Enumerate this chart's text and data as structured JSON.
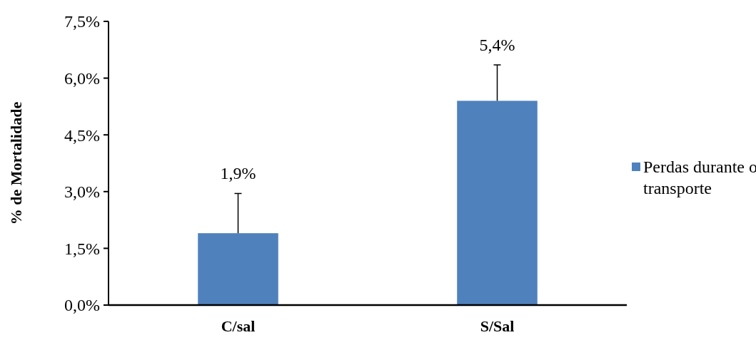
{
  "chart_data": {
    "type": "bar",
    "ylabel": "% de Mortalidade",
    "categories": [
      "C/sal",
      "S/Sal"
    ],
    "series": [
      {
        "name": "Perdas durante o transporte",
        "color": "#4f81bd",
        "values": [
          1.9,
          5.4
        ],
        "errors": [
          [
            1.9,
            2.95
          ],
          [
            5.4,
            6.35
          ]
        ],
        "value_labels": [
          "1,9%",
          "5,4%"
        ]
      }
    ],
    "ylim": [
      0,
      7.5
    ],
    "yticks": [
      {
        "value": 0,
        "label": "0,0%"
      },
      {
        "value": 1.5,
        "label": "1,5%"
      },
      {
        "value": 3,
        "label": "3,0%"
      },
      {
        "value": 4.5,
        "label": "4,5%"
      },
      {
        "value": 6,
        "label": "6,0%"
      },
      {
        "value": 7.5,
        "label": "7,5%"
      }
    ],
    "grid": false,
    "legend": "right"
  }
}
